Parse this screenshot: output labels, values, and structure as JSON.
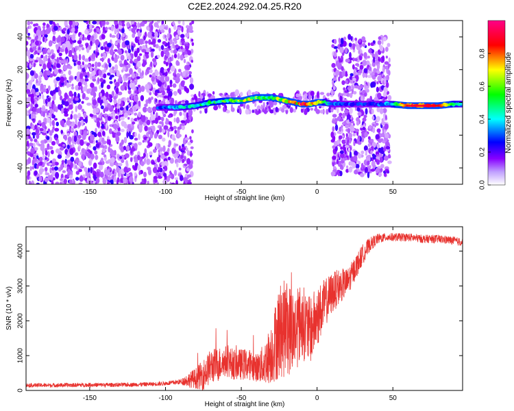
{
  "figure_title": "C2E2.2024.292.04.25.R20",
  "chart_data": [
    {
      "type": "heatmap",
      "title": "C2E2.2024.292.04.25.R20",
      "xlabel": "Height of straight line (km)",
      "ylabel": "Frequency (Hz)",
      "xlim": [
        -192,
        96
      ],
      "ylim": [
        -50,
        50
      ],
      "x_ticks": [
        -150,
        -100,
        -50,
        0,
        50
      ],
      "y_ticks": [
        -40,
        -20,
        0,
        20,
        40
      ],
      "colorbar": {
        "label": "Normalized spectral amplitude",
        "range": [
          0.0,
          1.0
        ],
        "ticks": [
          0.0,
          0.2,
          0.4,
          0.6,
          0.8
        ],
        "colormap": [
          "#ffffff",
          "#8800ff",
          "#0000ff",
          "#00ffff",
          "#00ff00",
          "#ffff00",
          "#ff0000",
          "#ff0088"
        ]
      },
      "ridge": {
        "x": [
          -105,
          -90,
          -80,
          -70,
          -60,
          -50,
          -45,
          -40,
          -35,
          -30,
          -25,
          -20,
          -15,
          -10,
          -5,
          0,
          5,
          10,
          20,
          30,
          40,
          48,
          60,
          70,
          80,
          90,
          96
        ],
        "y": [
          -3,
          -3,
          -2,
          0,
          1,
          1,
          2,
          3,
          3,
          3,
          2,
          1,
          0,
          -1,
          -1,
          0,
          0,
          -1,
          -1,
          -1,
          -1,
          -1,
          -2,
          -2,
          -2,
          -1,
          -1
        ],
        "amplitude": [
          0.3,
          0.4,
          0.45,
          0.5,
          0.55,
          0.65,
          0.65,
          0.6,
          0.6,
          0.6,
          0.7,
          0.75,
          0.7,
          0.85,
          0.9,
          0.8,
          0.5,
          0.35,
          0.3,
          0.3,
          0.3,
          0.35,
          0.9,
          0.9,
          0.85,
          0.5,
          0.4
        ]
      },
      "noise_regions": [
        {
          "x_range": [
            -192,
            -118
          ],
          "y_range": [
            -50,
            50
          ],
          "amplitude": 0.15,
          "density": "dense"
        },
        {
          "x_range": [
            -118,
            -82
          ],
          "y_range": [
            -50,
            50
          ],
          "amplitude": 0.1,
          "density": "medium"
        },
        {
          "x_range": [
            -82,
            10
          ],
          "y_range": [
            -6,
            6
          ],
          "amplitude": 0.1,
          "density": "sparse"
        },
        {
          "x_range": [
            10,
            48
          ],
          "y_range": [
            -45,
            40
          ],
          "amplitude": 0.15,
          "density": "medium"
        }
      ]
    },
    {
      "type": "line",
      "xlabel": "Height of straight line (km)",
      "ylabel": "SNR (10 * v/v)",
      "xlim": [
        -192,
        96
      ],
      "ylim": [
        0,
        4700
      ],
      "x_ticks": [
        -150,
        -100,
        -50,
        0,
        50
      ],
      "y_ticks": [
        0,
        1000,
        2000,
        3000,
        4000
      ],
      "series": [
        {
          "color": "#e8322e",
          "x": [
            -192,
            -170,
            -150,
            -130,
            -110,
            -100,
            -90,
            -85,
            -80,
            -75,
            -70,
            -65,
            -60,
            -55,
            -50,
            -45,
            -40,
            -35,
            -30,
            -25,
            -20,
            -15,
            -10,
            -5,
            0,
            5,
            10,
            15,
            20,
            25,
            30,
            35,
            40,
            45,
            50,
            60,
            70,
            80,
            90,
            96
          ],
          "y": [
            150,
            150,
            160,
            160,
            180,
            200,
            250,
            300,
            350,
            450,
            700,
            750,
            850,
            750,
            750,
            750,
            650,
            750,
            1100,
            1700,
            1800,
            1700,
            2000,
            1700,
            2100,
            2500,
            2800,
            3000,
            3100,
            3500,
            3900,
            4200,
            4350,
            4400,
            4400,
            4400,
            4350,
            4350,
            4300,
            4250
          ],
          "noise": [
            60,
            60,
            60,
            60,
            60,
            60,
            80,
            200,
            300,
            450,
            500,
            500,
            450,
            450,
            450,
            450,
            400,
            600,
            900,
            1400,
            1400,
            1200,
            1100,
            1000,
            900,
            700,
            600,
            500,
            400,
            350,
            300,
            200,
            150,
            120,
            120,
            120,
            120,
            120,
            120,
            120
          ]
        }
      ]
    }
  ]
}
